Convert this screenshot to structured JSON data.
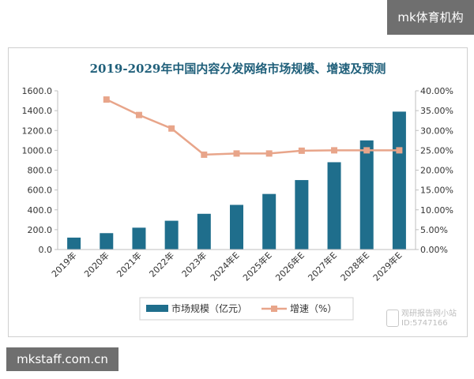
{
  "watermarks": {
    "top_right": "mk体育机构",
    "bottom_left": "mkstaff.com.cn",
    "source_line1": "观研报告网小站",
    "source_line2": "ID:5747166"
  },
  "chart_data": {
    "type": "bar+line",
    "title": "2019-2029年中国内容分发网络市场规模、增速及预测",
    "categories": [
      "2019年",
      "2020年",
      "2021年",
      "2022年",
      "2023年",
      "2024年E",
      "2025年E",
      "2026年E",
      "2027年E",
      "2028年E",
      "2029年E"
    ],
    "series": [
      {
        "name": "市场规模（亿元）",
        "type": "bar",
        "axis": "left",
        "color": "#1f6e8c",
        "values": [
          120,
          165,
          220,
          290,
          360,
          450,
          560,
          700,
          880,
          1100,
          1390
        ]
      },
      {
        "name": "增速（%）",
        "type": "line",
        "axis": "right",
        "color": "#e8a58a",
        "values": [
          null,
          37.8,
          33.9,
          30.5,
          23.9,
          24.2,
          24.2,
          24.9,
          25.0,
          25.0,
          25.0
        ]
      }
    ],
    "y_left": {
      "min": 0,
      "max": 1600,
      "step": 200,
      "ticks": [
        "0.0",
        "200.0",
        "400.0",
        "600.0",
        "800.0",
        "1000.0",
        "1200.0",
        "1400.0",
        "1600.0"
      ]
    },
    "y_right": {
      "min": 0,
      "max": 40,
      "step": 5,
      "ticks": [
        "0.00%",
        "5.00%",
        "10.00%",
        "15.00%",
        "20.00%",
        "25.00%",
        "30.00%",
        "35.00%",
        "40.00%"
      ]
    },
    "grid": false,
    "legend_position": "bottom",
    "colors": {
      "title": "#1f5f7a",
      "axis": "#bfbfbf",
      "text": "#333333"
    }
  }
}
